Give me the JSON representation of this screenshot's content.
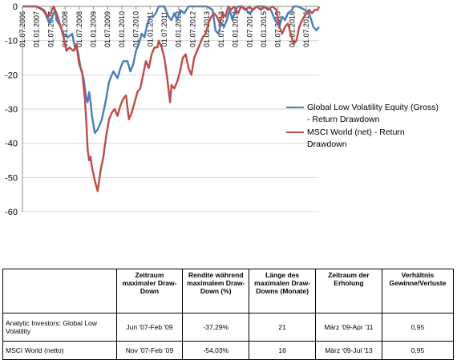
{
  "chart_data": {
    "type": "line",
    "title": "",
    "xlabel": "",
    "ylabel": "",
    "ylim": [
      -60,
      0
    ],
    "yticks": [
      0,
      -10,
      -20,
      -30,
      -40,
      -50,
      -60
    ],
    "x_tick_labels": [
      "01.07.2006",
      "01.01.2007",
      "01.07.2007",
      "01.01.2008",
      "01.07.2008",
      "01.01.2009",
      "01.07.2009",
      "01.01.2010",
      "01.07.2010",
      "01.01.2011",
      "01.07.2011",
      "01.01.2012",
      "01.07.2012",
      "01.01.2013",
      "01.07.2013",
      "01.01.2014",
      "01.07.2014",
      "01.01.2015",
      "01.07.2015",
      "01.01.2016",
      "01.07.2016"
    ],
    "grid": "horizontal",
    "legend_position": "right",
    "series": [
      {
        "name": "Global Low Volatility Equity (Gross) - Return Drawdown",
        "color": "#4a7ebb",
        "points": [
          [
            2006.5,
            0
          ],
          [
            2006.75,
            0
          ],
          [
            2007.0,
            0
          ],
          [
            2007.2,
            -1
          ],
          [
            2007.3,
            -2
          ],
          [
            2007.45,
            -5
          ],
          [
            2007.55,
            -3
          ],
          [
            2007.65,
            -1
          ],
          [
            2007.7,
            -4
          ],
          [
            2007.85,
            -6
          ],
          [
            2007.95,
            -8
          ],
          [
            2008.1,
            -9
          ],
          [
            2008.25,
            -8
          ],
          [
            2008.35,
            -12
          ],
          [
            2008.45,
            -13
          ],
          [
            2008.55,
            -18
          ],
          [
            2008.65,
            -21
          ],
          [
            2008.75,
            -27
          ],
          [
            2008.8,
            -28
          ],
          [
            2008.85,
            -25
          ],
          [
            2008.9,
            -28
          ],
          [
            2008.95,
            -32
          ],
          [
            2009.05,
            -37
          ],
          [
            2009.15,
            -36
          ],
          [
            2009.3,
            -33
          ],
          [
            2009.45,
            -27
          ],
          [
            2009.55,
            -22
          ],
          [
            2009.7,
            -19
          ],
          [
            2009.85,
            -21
          ],
          [
            2009.95,
            -18
          ],
          [
            2010.05,
            -16
          ],
          [
            2010.2,
            -16
          ],
          [
            2010.3,
            -19
          ],
          [
            2010.4,
            -17
          ],
          [
            2010.5,
            -13
          ],
          [
            2010.6,
            -11
          ],
          [
            2010.7,
            -8
          ],
          [
            2010.8,
            -9
          ],
          [
            2010.9,
            -5
          ],
          [
            2011.0,
            -3
          ],
          [
            2011.1,
            -3
          ],
          [
            2011.2,
            -2
          ],
          [
            2011.3,
            0
          ],
          [
            2011.5,
            0
          ],
          [
            2011.65,
            -3
          ],
          [
            2011.75,
            -4
          ],
          [
            2011.85,
            -2
          ],
          [
            2011.95,
            -4
          ],
          [
            2012.05,
            -1
          ],
          [
            2012.2,
            -2
          ],
          [
            2012.35,
            0
          ],
          [
            2012.55,
            0
          ],
          [
            2012.75,
            0
          ],
          [
            2013.0,
            0
          ],
          [
            2013.2,
            -1
          ],
          [
            2013.3,
            -7
          ],
          [
            2013.4,
            -8
          ],
          [
            2013.5,
            -5
          ],
          [
            2013.6,
            -6
          ],
          [
            2013.7,
            -4
          ],
          [
            2013.8,
            -1
          ],
          [
            2013.9,
            -4
          ],
          [
            2014.0,
            -1
          ],
          [
            2014.1,
            0
          ],
          [
            2014.25,
            0
          ],
          [
            2014.5,
            -2
          ],
          [
            2014.75,
            0
          ],
          [
            2015.0,
            0
          ],
          [
            2015.25,
            -1
          ],
          [
            2015.4,
            -4
          ],
          [
            2015.55,
            -6
          ],
          [
            2015.65,
            -3
          ],
          [
            2015.75,
            -4
          ],
          [
            2015.85,
            -2
          ],
          [
            2016.0,
            -1
          ],
          [
            2016.05,
            0
          ],
          [
            2016.2,
            0
          ],
          [
            2016.45,
            -1
          ],
          [
            2016.6,
            -2
          ],
          [
            2016.75,
            -6
          ],
          [
            2016.85,
            -7
          ],
          [
            2016.95,
            -6
          ]
        ]
      },
      {
        "name": "MSCI World (net) - Return Drawdown",
        "color": "#be4b48",
        "points": [
          [
            2006.5,
            0
          ],
          [
            2006.75,
            0
          ],
          [
            2007.0,
            0
          ],
          [
            2007.25,
            -1
          ],
          [
            2007.4,
            -3
          ],
          [
            2007.5,
            -2
          ],
          [
            2007.6,
            0
          ],
          [
            2007.7,
            -2
          ],
          [
            2007.85,
            -6
          ],
          [
            2007.95,
            -9
          ],
          [
            2008.05,
            -13
          ],
          [
            2008.15,
            -12
          ],
          [
            2008.3,
            -13
          ],
          [
            2008.4,
            -11
          ],
          [
            2008.5,
            -17
          ],
          [
            2008.6,
            -19
          ],
          [
            2008.7,
            -27
          ],
          [
            2008.75,
            -34
          ],
          [
            2008.8,
            -42
          ],
          [
            2008.85,
            -45
          ],
          [
            2008.9,
            -44
          ],
          [
            2008.95,
            -47
          ],
          [
            2009.05,
            -51
          ],
          [
            2009.15,
            -54
          ],
          [
            2009.25,
            -48
          ],
          [
            2009.35,
            -44
          ],
          [
            2009.45,
            -38
          ],
          [
            2009.55,
            -33
          ],
          [
            2009.65,
            -31
          ],
          [
            2009.75,
            -30
          ],
          [
            2009.85,
            -32
          ],
          [
            2009.95,
            -29
          ],
          [
            2010.05,
            -27
          ],
          [
            2010.15,
            -26
          ],
          [
            2010.25,
            -33
          ],
          [
            2010.35,
            -31
          ],
          [
            2010.45,
            -28
          ],
          [
            2010.55,
            -25
          ],
          [
            2010.65,
            -24
          ],
          [
            2010.75,
            -20
          ],
          [
            2010.85,
            -16
          ],
          [
            2010.95,
            -18
          ],
          [
            2011.05,
            -14
          ],
          [
            2011.15,
            -12
          ],
          [
            2011.25,
            -12
          ],
          [
            2011.3,
            -10
          ],
          [
            2011.4,
            -12
          ],
          [
            2011.5,
            -15
          ],
          [
            2011.6,
            -21
          ],
          [
            2011.7,
            -28
          ],
          [
            2011.75,
            -23
          ],
          [
            2011.85,
            -24
          ],
          [
            2011.95,
            -22
          ],
          [
            2012.05,
            -19
          ],
          [
            2012.15,
            -15
          ],
          [
            2012.25,
            -14
          ],
          [
            2012.35,
            -18
          ],
          [
            2012.45,
            -20
          ],
          [
            2012.55,
            -15
          ],
          [
            2012.65,
            -13
          ],
          [
            2012.75,
            -11
          ],
          [
            2012.85,
            -9
          ],
          [
            2012.95,
            -8
          ],
          [
            2013.05,
            -5
          ],
          [
            2013.15,
            -3
          ],
          [
            2013.25,
            -2
          ],
          [
            2013.35,
            -3
          ],
          [
            2013.45,
            -5
          ],
          [
            2013.55,
            -2
          ],
          [
            2013.65,
            -3
          ],
          [
            2013.75,
            0
          ],
          [
            2013.85,
            -1
          ],
          [
            2013.95,
            0
          ],
          [
            2014.1,
            -2
          ],
          [
            2014.2,
            0
          ],
          [
            2014.35,
            -1
          ],
          [
            2014.5,
            0
          ],
          [
            2014.6,
            -1
          ],
          [
            2014.75,
            0
          ],
          [
            2014.9,
            -1
          ],
          [
            2015.0,
            0
          ],
          [
            2015.15,
            -1
          ],
          [
            2015.3,
            0
          ],
          [
            2015.45,
            -1
          ],
          [
            2015.55,
            -6
          ],
          [
            2015.65,
            -8
          ],
          [
            2015.75,
            -6
          ],
          [
            2015.85,
            -5
          ],
          [
            2015.95,
            -8
          ],
          [
            2016.05,
            -11
          ],
          [
            2016.15,
            -10
          ],
          [
            2016.25,
            -6
          ],
          [
            2016.35,
            -4
          ],
          [
            2016.5,
            -2
          ],
          [
            2016.6,
            -1
          ],
          [
            2016.7,
            -2
          ],
          [
            2016.8,
            -1
          ],
          [
            2016.9,
            -1
          ],
          [
            2016.95,
            0
          ]
        ]
      }
    ]
  },
  "legend": [
    {
      "label": "Global Low Volatility Equity (Gross) - Return Drawdown",
      "color": "#4a7ebb"
    },
    {
      "label": "MSCI World (net) - Return Drawdown",
      "color": "#be4b48"
    }
  ],
  "table": {
    "headers": [
      "",
      "Zeitraum maximaler Draw-Down",
      "Rendite während maximalem Draw-Down (%)",
      "Länge des maximalen Draw-Downs (Monate)",
      "Zeitraum der Erholung",
      "Verhältnis Gewinne/Verluste"
    ],
    "rows": [
      [
        "Analytic Investors: Global Low Volatility",
        "Jun '07-Feb '09",
        "-37,29%",
        "21",
        "März '09-Apr '11",
        "0,95"
      ],
      [
        "MSCI World (netto)",
        "Nov '07-Feb '09",
        "-54,03%",
        "16",
        "März '09-Jul '13",
        "0,95"
      ]
    ]
  }
}
